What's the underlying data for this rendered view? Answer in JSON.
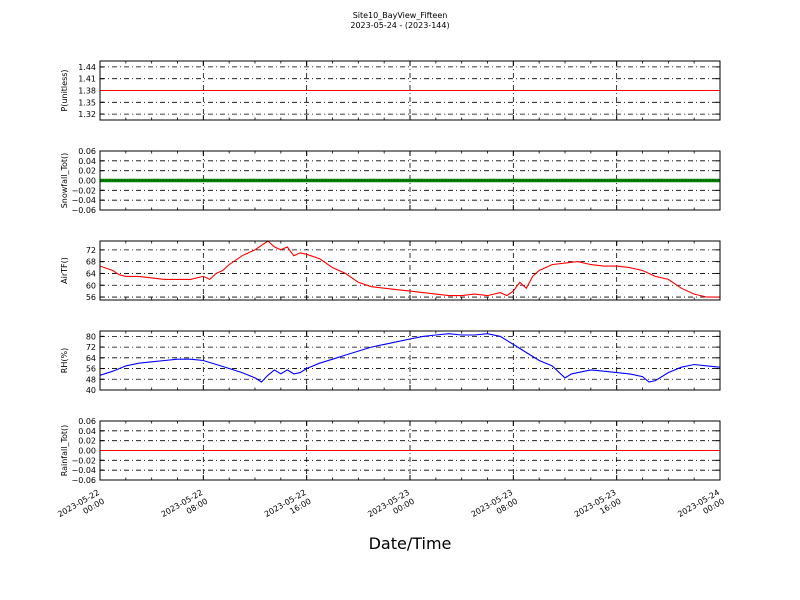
{
  "figure": {
    "title_line1": "Site10_BayView_Fifteen",
    "title_line2": "2023-05-24 - (2023-144)",
    "xlabel": "Date/Time"
  },
  "chart_data": [
    {
      "type": "line",
      "ylabel": "P(unitless)",
      "ylim": [
        1.305,
        1.455
      ],
      "yticks": [
        1.32,
        1.35,
        1.38,
        1.41,
        1.44
      ],
      "yticklabels": [
        "1.32",
        "1.35",
        "1.38",
        "1.41",
        "1.44"
      ],
      "xlim": [
        0,
        48
      ],
      "grid": true,
      "series": [
        {
          "color": "#ff0000",
          "x": [
            0,
            48
          ],
          "y": [
            1.38,
            1.38
          ]
        }
      ]
    },
    {
      "type": "line",
      "ylabel": "Snowfall_Tot()",
      "ylim": [
        -0.06,
        0.06
      ],
      "yticks": [
        -0.06,
        -0.04,
        -0.02,
        0.0,
        0.02,
        0.04,
        0.06
      ],
      "yticklabels": [
        "−0.06",
        "−0.04",
        "−0.02",
        "0.00",
        "0.02",
        "0.04",
        "0.06"
      ],
      "xlim": [
        0,
        48
      ],
      "grid": true,
      "series": [
        {
          "color": "#008000",
          "x": [
            0,
            48
          ],
          "y": [
            0,
            0
          ]
        }
      ]
    },
    {
      "type": "line",
      "ylabel": "AirTF()",
      "ylim": [
        55,
        75
      ],
      "yticks": [
        56,
        60,
        64,
        68,
        72
      ],
      "yticklabels": [
        "56",
        "60",
        "64",
        "68",
        "72"
      ],
      "xlim": [
        0,
        48
      ],
      "grid": true,
      "series": [
        {
          "color": "#ff0000",
          "x": [
            0,
            1,
            1.5,
            2,
            3,
            4,
            5,
            6,
            7,
            7.5,
            8,
            8.5,
            9,
            9.5,
            10,
            11,
            12,
            13,
            13.5,
            14,
            14.5,
            15,
            15.5,
            16,
            17,
            18,
            19,
            20,
            21,
            22,
            23,
            24,
            25,
            26,
            27,
            28,
            29,
            30,
            31,
            31.5,
            32,
            32.5,
            33,
            33.5,
            34,
            35,
            36,
            37,
            38,
            39,
            40,
            41,
            42,
            43,
            44,
            45,
            46,
            47,
            48
          ],
          "y": [
            66.5,
            65,
            63.5,
            63,
            63,
            62.5,
            62,
            62,
            62,
            62.5,
            63,
            62,
            64,
            65,
            67,
            70,
            72,
            75,
            73,
            72,
            73,
            70,
            71,
            70.5,
            69,
            66,
            64,
            61,
            59.5,
            59,
            58.5,
            58,
            57.5,
            57,
            56.5,
            56.5,
            57,
            56.5,
            57.5,
            56.5,
            58,
            61,
            59,
            63,
            65,
            67,
            67.5,
            68,
            67,
            66.5,
            66.5,
            66,
            65,
            63,
            62,
            59,
            57,
            56,
            56
          ]
        }
      ]
    },
    {
      "type": "line",
      "ylabel": "RH(%)",
      "ylim": [
        40,
        84
      ],
      "yticks": [
        40,
        48,
        56,
        64,
        72,
        80
      ],
      "yticklabels": [
        "40",
        "48",
        "56",
        "64",
        "72",
        "80"
      ],
      "xlim": [
        0,
        48
      ],
      "grid": true,
      "series": [
        {
          "color": "#0000ff",
          "x": [
            0,
            1,
            2,
            3,
            4,
            5,
            6,
            7,
            8,
            9,
            10,
            11,
            12,
            12.5,
            13,
            13.5,
            14,
            14.5,
            15,
            15.5,
            16,
            17,
            18,
            19,
            20,
            21,
            22,
            23,
            24,
            25,
            26,
            27,
            28,
            29,
            30,
            31,
            32,
            33,
            34,
            35,
            36,
            36.5,
            37,
            38,
            39,
            40,
            41,
            42,
            42.5,
            43,
            44,
            45,
            46,
            47,
            48
          ],
          "y": [
            51,
            54,
            58,
            60,
            61,
            62,
            63,
            63,
            62,
            59,
            56,
            53,
            49,
            46,
            51,
            55,
            52,
            55,
            52,
            53,
            56,
            60,
            63,
            66,
            69,
            72,
            74,
            76,
            78,
            80,
            81,
            82,
            81,
            81,
            82,
            80,
            74,
            68,
            62,
            58,
            49,
            52,
            53,
            55,
            54,
            53,
            52,
            50,
            46,
            47,
            53,
            57,
            59,
            58,
            57
          ]
        }
      ]
    },
    {
      "type": "line",
      "ylabel": "Rainfall_Tot()",
      "ylim": [
        -0.06,
        0.06
      ],
      "yticks": [
        -0.06,
        -0.04,
        -0.02,
        0.0,
        0.02,
        0.04,
        0.06
      ],
      "yticklabels": [
        "−0.06",
        "−0.04",
        "−0.02",
        "0.00",
        "0.02",
        "0.04",
        "0.06"
      ],
      "xlim": [
        0,
        48
      ],
      "grid": true,
      "series": [
        {
          "color": "#ff0000",
          "x": [
            0,
            48
          ],
          "y": [
            0,
            0
          ]
        }
      ]
    }
  ],
  "x_axis": {
    "ticks": [
      0,
      8,
      16,
      24,
      32,
      40,
      48
    ],
    "tick_labels_line1": [
      "2023-05-22",
      "2023-05-22",
      "2023-05-22",
      "2023-05-23",
      "2023-05-23",
      "2023-05-23",
      "2023-05-24"
    ],
    "tick_labels_line2": [
      "00:00",
      "08:00",
      "16:00",
      "00:00",
      "08:00",
      "16:00",
      "00:00"
    ],
    "minor_ticks": [
      2,
      4,
      6,
      10,
      12,
      14,
      18,
      20,
      22,
      26,
      28,
      30,
      34,
      36,
      38,
      42,
      44,
      46
    ]
  }
}
